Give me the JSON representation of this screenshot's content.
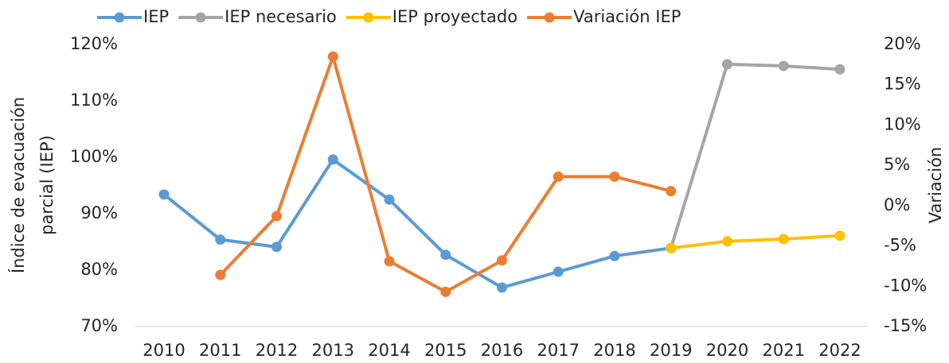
{
  "chart_data": {
    "type": "line",
    "categories": [
      "2010",
      "2011",
      "2012",
      "2013",
      "2014",
      "2015",
      "2016",
      "2017",
      "2018",
      "2019",
      "2020",
      "2021",
      "2022"
    ],
    "ylabel": [
      "Índice de evacuación",
      "parcial (IEP)"
    ],
    "y2label": "Variación",
    "ylim": [
      70,
      120
    ],
    "yticks": [
      {
        "value": 70,
        "label": "70%"
      },
      {
        "value": 80,
        "label": "80%"
      },
      {
        "value": 90,
        "label": "90%"
      },
      {
        "value": 100,
        "label": "100%"
      },
      {
        "value": 110,
        "label": "110%"
      },
      {
        "value": 120,
        "label": "120%"
      }
    ],
    "y2lim": [
      -15,
      20
    ],
    "y2ticks": [
      {
        "value": -15,
        "label": "-15%"
      },
      {
        "value": -10,
        "label": "-10%"
      },
      {
        "value": -5,
        "label": "-5%"
      },
      {
        "value": 0,
        "label": "0%"
      },
      {
        "value": 5,
        "label": "5%"
      },
      {
        "value": 10,
        "label": "10%"
      },
      {
        "value": 15,
        "label": "15%"
      },
      {
        "value": 20,
        "label": "20%"
      }
    ],
    "legend": "top",
    "series": [
      {
        "name": "IEP",
        "color": "#5b9bd5",
        "values": [
          93.4,
          85.4,
          84.1,
          99.6,
          92.5,
          82.7,
          76.9,
          79.7,
          82.5,
          83.9,
          null,
          null,
          null
        ]
      },
      {
        "name": "IEP necesario",
        "color": "#a5a5a5",
        "values": [
          null,
          null,
          null,
          null,
          null,
          null,
          null,
          null,
          null,
          83.9,
          116.5,
          116.2,
          115.6
        ]
      },
      {
        "name": "IEP proyectado",
        "color": "#ffc000",
        "values": [
          null,
          null,
          null,
          null,
          null,
          null,
          null,
          null,
          null,
          83.9,
          85.1,
          85.5,
          86.1
        ]
      },
      {
        "name": "Variación IEP",
        "color": "#ed7d31",
        "axis": "y2",
        "values": [
          null,
          -8.6,
          -1.3,
          18.5,
          -6.9,
          -10.7,
          -6.8,
          3.6,
          3.6,
          1.8,
          null,
          null,
          null
        ]
      }
    ]
  }
}
